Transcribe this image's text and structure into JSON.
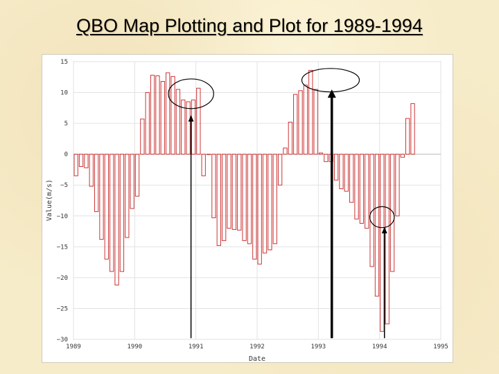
{
  "slide": {
    "title": "QBO Map Plotting and Plot for 1989-1994"
  },
  "chart_data": {
    "type": "bar",
    "xlabel": "Date",
    "ylabel": "Value(m/s)",
    "xlim": [
      1989,
      1995
    ],
    "ylim": [
      -30,
      15
    ],
    "x_ticks": [
      "1989",
      "1990",
      "1991",
      "1992",
      "1993",
      "1994",
      "1995"
    ],
    "y_ticks": [
      15,
      10,
      5,
      0,
      -5,
      -10,
      -15,
      -20,
      -25,
      -30
    ],
    "grid": true,
    "bar_color": "#cc3333",
    "values": [
      -3.5,
      -2.0,
      -2.2,
      -5.2,
      -9.3,
      -13.8,
      -17.0,
      -19.0,
      -21.2,
      -19.0,
      -13.5,
      -8.8,
      -6.8,
      5.7,
      10.0,
      12.8,
      12.7,
      11.8,
      13.2,
      12.6,
      10.5,
      8.8,
      8.5,
      8.8,
      10.7,
      -3.5,
      0.0,
      -10.3,
      -14.8,
      -14.0,
      -12.0,
      -12.2,
      -12.3,
      -14.0,
      -14.5,
      -17.0,
      -17.8,
      -16.0,
      -15.5,
      -14.5,
      -5.0,
      1.0,
      5.2,
      9.7,
      10.3,
      11.2,
      13.6,
      10.5,
      0.2,
      -1.2,
      -1.2,
      -4.2,
      -5.6,
      -6.0,
      -7.8,
      -10.5,
      -11.2,
      -12.0,
      -18.2,
      -23.0,
      -28.7,
      -27.5,
      -19.0,
      -10.0,
      -0.5,
      5.8,
      8.2
    ],
    "annotations": {
      "ellipses": [
        {
          "x": 1990.92,
          "y": 9.8,
          "rx": 0.37,
          "ry": 2.4
        },
        {
          "x": 1993.2,
          "y": 12.0,
          "rx": 0.47,
          "ry": 1.9
        },
        {
          "x": 1994.04,
          "y": -10.2,
          "rx": 0.2,
          "ry": 1.7
        }
      ],
      "arrows": [
        {
          "x": 1990.92,
          "y_from": -29.8,
          "y_to": 6.3,
          "width": 1.5
        },
        {
          "x": 1993.22,
          "y_from": -29.8,
          "y_to": 10.5,
          "width": 3.5
        },
        {
          "x": 1994.08,
          "y_from": -29.8,
          "y_to": -11.8,
          "width": 1.5
        }
      ]
    }
  }
}
